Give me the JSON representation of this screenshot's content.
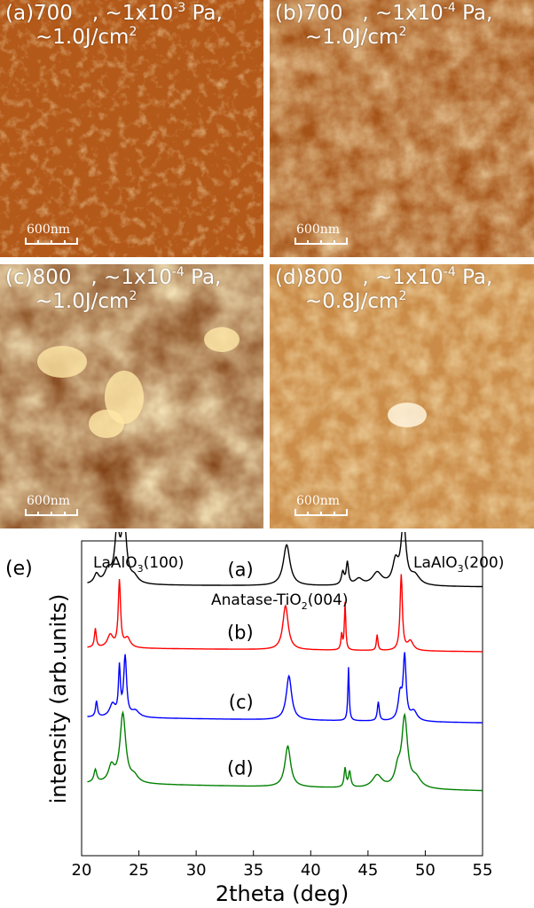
{
  "panels": [
    {
      "id": "a",
      "line1": "(a)700",
      "line1b": "   , ~1x10",
      "exp1": "-3",
      "line1c": " Pa,",
      "line2": "~1.0J/cm",
      "exp2": "2",
      "scale": "600nm",
      "color": "#c8661e"
    },
    {
      "id": "b",
      "line1": "(b)700",
      "line1b": "   , ~1x10",
      "exp1": "-4",
      "line1c": " Pa,",
      "line2": "~1.0J/cm",
      "exp2": "2",
      "scale": "600nm",
      "color": "#b8601d"
    },
    {
      "id": "c",
      "line1": "(c)800",
      "line1b": "   , ~1x10",
      "exp1": "-4",
      "line1c": " Pa,",
      "line2": "~1.0J/cm",
      "exp2": "2",
      "scale": "600nm",
      "color": "#9b4a12"
    },
    {
      "id": "d",
      "line1": "(d)800",
      "line1b": "   , ~1x10",
      "exp1": "-4",
      "line1c": " Pa,",
      "line2": "~0.8J/cm",
      "exp2": "2",
      "scale": "600nm",
      "color": "#e3a255"
    }
  ],
  "chart_data": {
    "type": "line",
    "panel_label": "(e)",
    "xlabel": "2theta (deg)",
    "ylabel": "intensity (arb.units)",
    "xlim": [
      20,
      55
    ],
    "xticks": [
      20,
      25,
      30,
      35,
      40,
      45,
      50,
      55
    ],
    "annotations": [
      {
        "pre": "LaAlO",
        "sub": "3",
        "post": "(100)"
      },
      {
        "pre": "Anatase-TiO",
        "sub": "2",
        "post": "(004)"
      },
      {
        "pre": "LaAlO",
        "sub": "3",
        "post": "(200)"
      }
    ],
    "series": [
      {
        "name": "(a)",
        "color": "#000000",
        "baseline": 0.86,
        "peaks": [
          [
            21.3,
            0.03,
            0.25
          ],
          [
            22.3,
            0.04,
            0.35
          ],
          [
            23.1,
            0.16,
            0.25
          ],
          [
            23.7,
            0.2,
            0.25
          ],
          [
            24.6,
            0.02,
            0.4
          ],
          [
            37.9,
            0.13,
            0.35
          ],
          [
            42.8,
            0.04,
            0.15
          ],
          [
            43.2,
            0.07,
            0.12
          ],
          [
            44.2,
            0.02,
            0.4
          ],
          [
            45.8,
            0.04,
            0.5
          ],
          [
            47.4,
            0.07,
            0.3
          ],
          [
            48.1,
            0.2,
            0.25
          ],
          [
            49.1,
            0.03,
            0.5
          ]
        ]
      },
      {
        "name": "(b)",
        "color": "#ff0000",
        "baseline": 0.66,
        "peaks": [
          [
            21.2,
            0.06,
            0.1
          ],
          [
            22.5,
            0.04,
            0.3
          ],
          [
            23.3,
            0.21,
            0.12
          ],
          [
            24.0,
            0.03,
            0.3
          ],
          [
            37.8,
            0.14,
            0.28
          ],
          [
            42.7,
            0.05,
            0.08
          ],
          [
            43.0,
            0.15,
            0.07
          ],
          [
            45.8,
            0.05,
            0.08
          ],
          [
            47.9,
            0.24,
            0.12
          ],
          [
            48.7,
            0.03,
            0.3
          ]
        ]
      },
      {
        "name": "(c)",
        "color": "#0000ff",
        "baseline": 0.44,
        "peaks": [
          [
            21.3,
            0.05,
            0.1
          ],
          [
            22.7,
            0.04,
            0.3
          ],
          [
            23.3,
            0.15,
            0.1
          ],
          [
            23.8,
            0.19,
            0.15
          ],
          [
            24.7,
            0.02,
            0.4
          ],
          [
            38.1,
            0.14,
            0.28
          ],
          [
            43.3,
            0.17,
            0.07
          ],
          [
            45.9,
            0.06,
            0.1
          ],
          [
            47.8,
            0.08,
            0.2
          ],
          [
            48.2,
            0.2,
            0.15
          ],
          [
            49.0,
            0.03,
            0.35
          ]
        ]
      },
      {
        "name": "(d)",
        "color": "#008000",
        "baseline": 0.23,
        "peaks": [
          [
            21.2,
            0.04,
            0.15
          ],
          [
            22.6,
            0.05,
            0.3
          ],
          [
            23.6,
            0.22,
            0.3
          ],
          [
            24.6,
            0.02,
            0.4
          ],
          [
            38.0,
            0.13,
            0.3
          ],
          [
            43.0,
            0.06,
            0.1
          ],
          [
            43.4,
            0.05,
            0.12
          ],
          [
            45.8,
            0.04,
            0.5
          ],
          [
            47.6,
            0.05,
            0.3
          ],
          [
            48.2,
            0.22,
            0.3
          ],
          [
            49.2,
            0.03,
            0.5
          ]
        ]
      }
    ],
    "series_label_x": 35
  }
}
